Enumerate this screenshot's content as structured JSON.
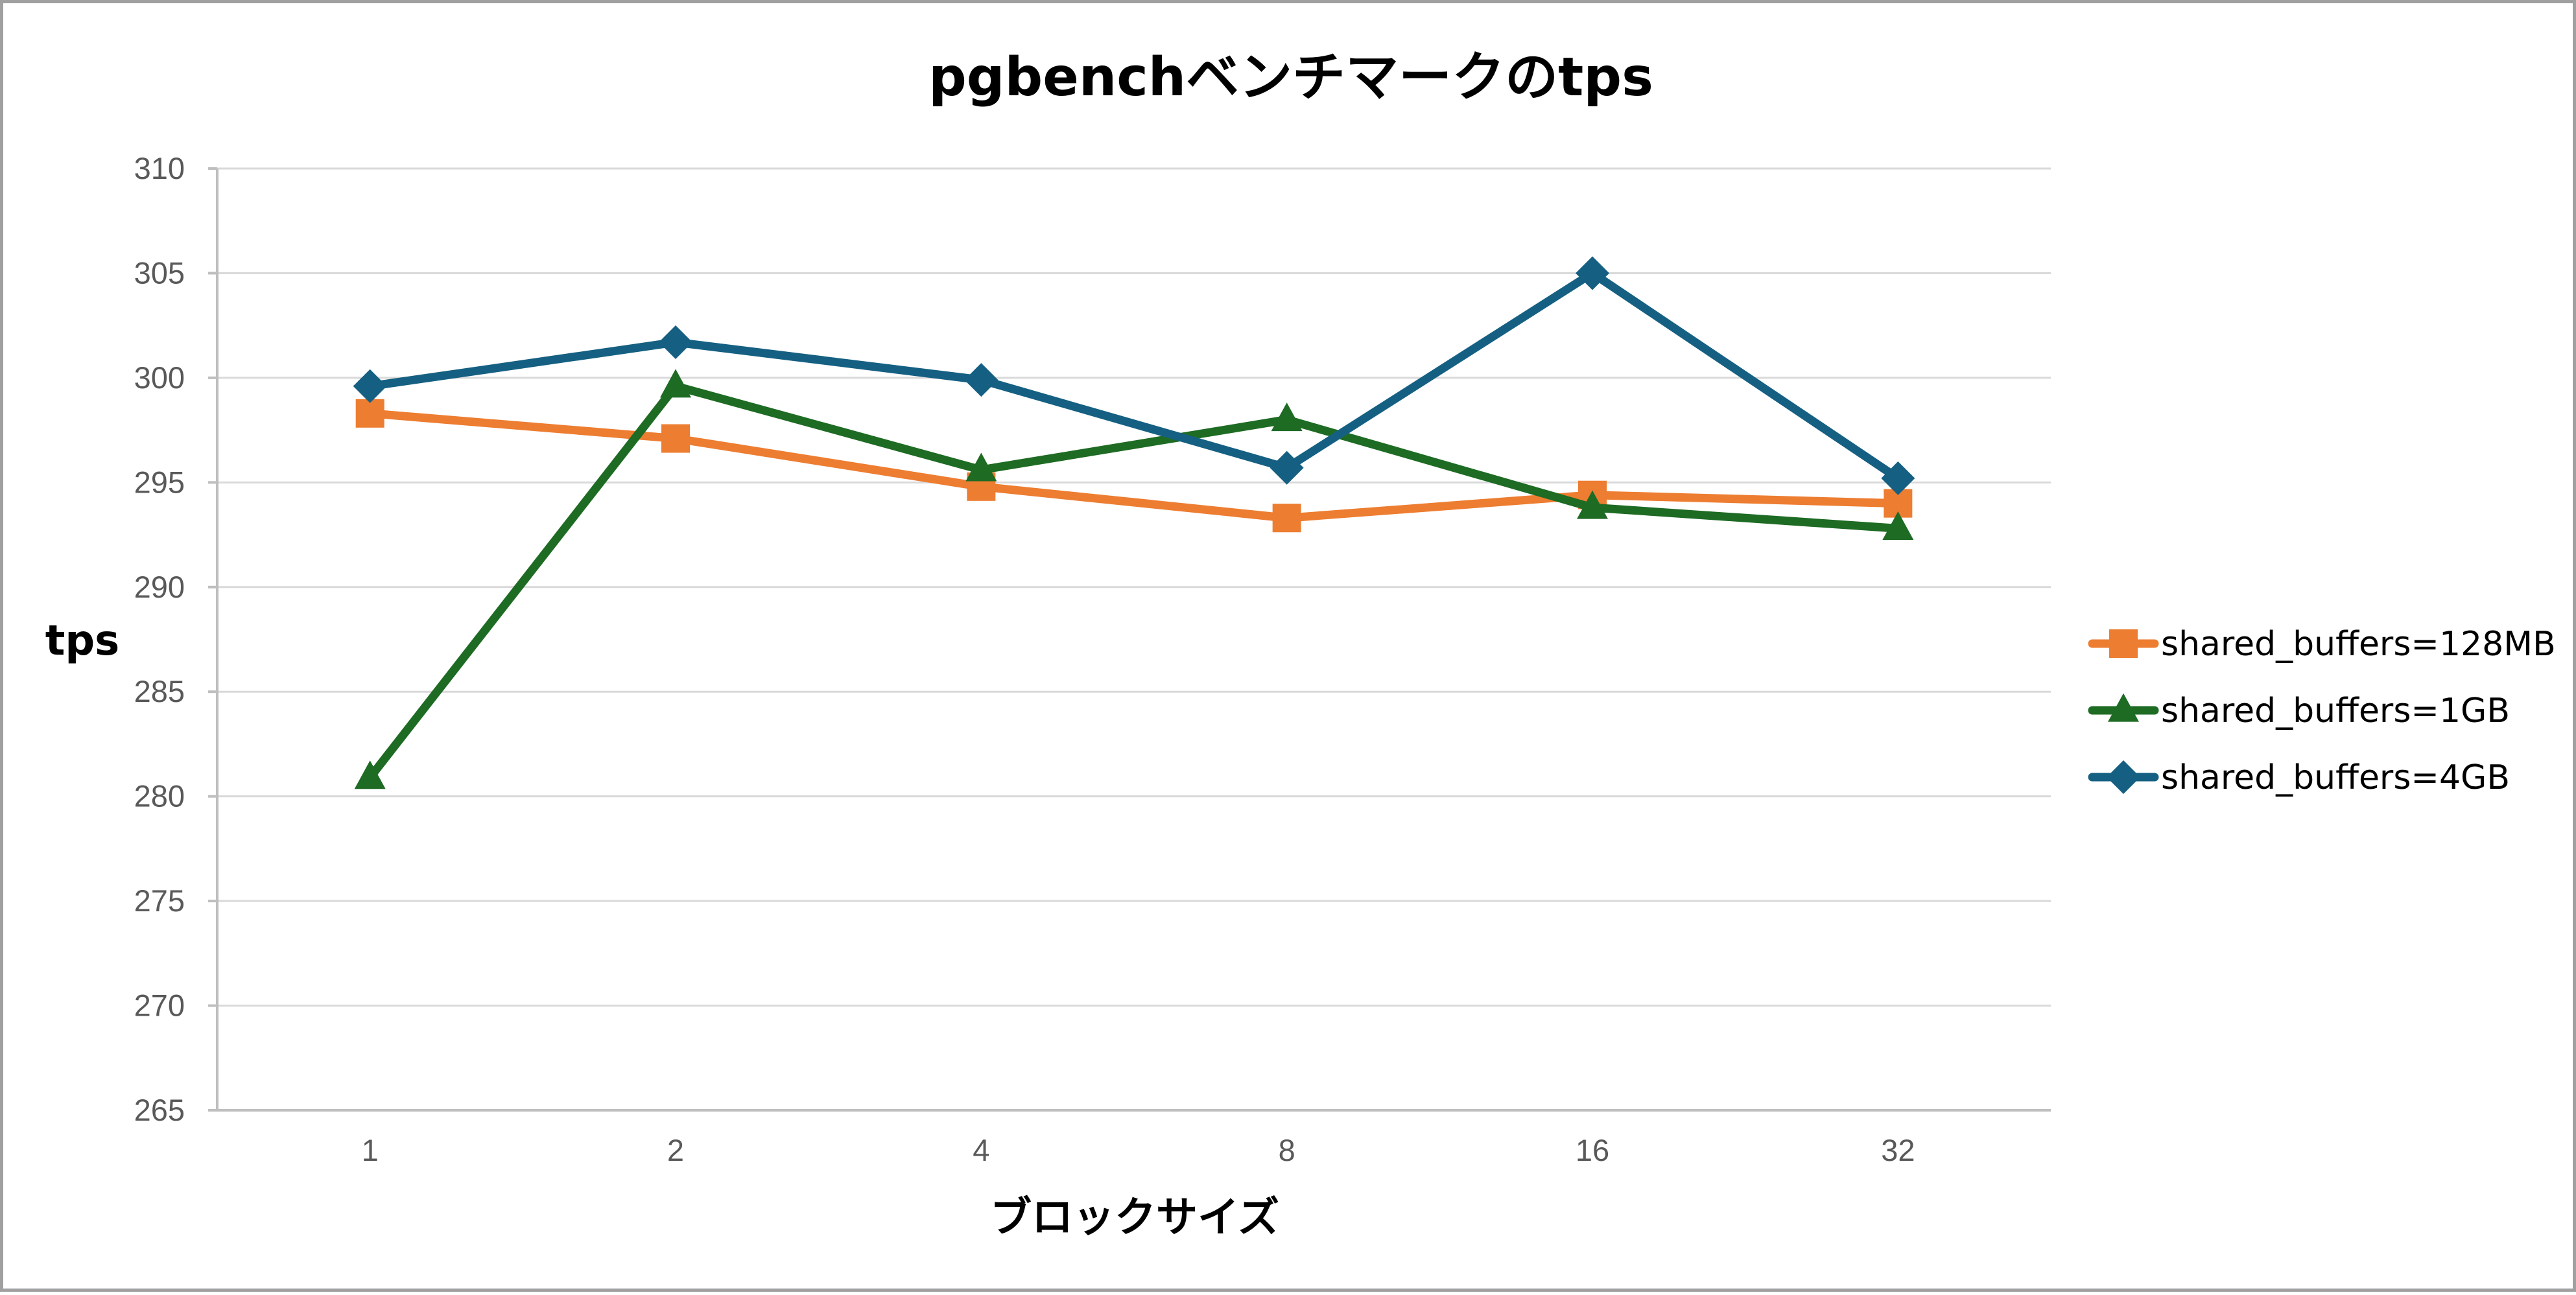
{
  "chart_data": {
    "type": "line",
    "title": "pgbenchベンチマークのtps",
    "xlabel": "ブロックサイズ",
    "ylabel": "tps",
    "categories": [
      "1",
      "2",
      "4",
      "8",
      "16",
      "32"
    ],
    "ylim": [
      265,
      310
    ],
    "ytick_step": 5,
    "yticks": [
      "310",
      "305",
      "300",
      "295",
      "290",
      "285",
      "280",
      "275",
      "270",
      "265"
    ],
    "grid": true,
    "legend_position": "right",
    "series": [
      {
        "name": "shared_buffers=128MB",
        "values": [
          298.3,
          297.1,
          294.8,
          293.3,
          294.4,
          294.0
        ],
        "color": "#ed7d31",
        "marker": "square"
      },
      {
        "name": "shared_buffers=1GB",
        "values": [
          280.9,
          299.6,
          295.6,
          298.0,
          293.8,
          292.8
        ],
        "color": "#1e6b24",
        "marker": "triangle"
      },
      {
        "name": "shared_buffers=4GB",
        "values": [
          299.6,
          301.7,
          299.9,
          295.7,
          305.0,
          295.2
        ],
        "color": "#156082",
        "marker": "diamond"
      }
    ]
  }
}
